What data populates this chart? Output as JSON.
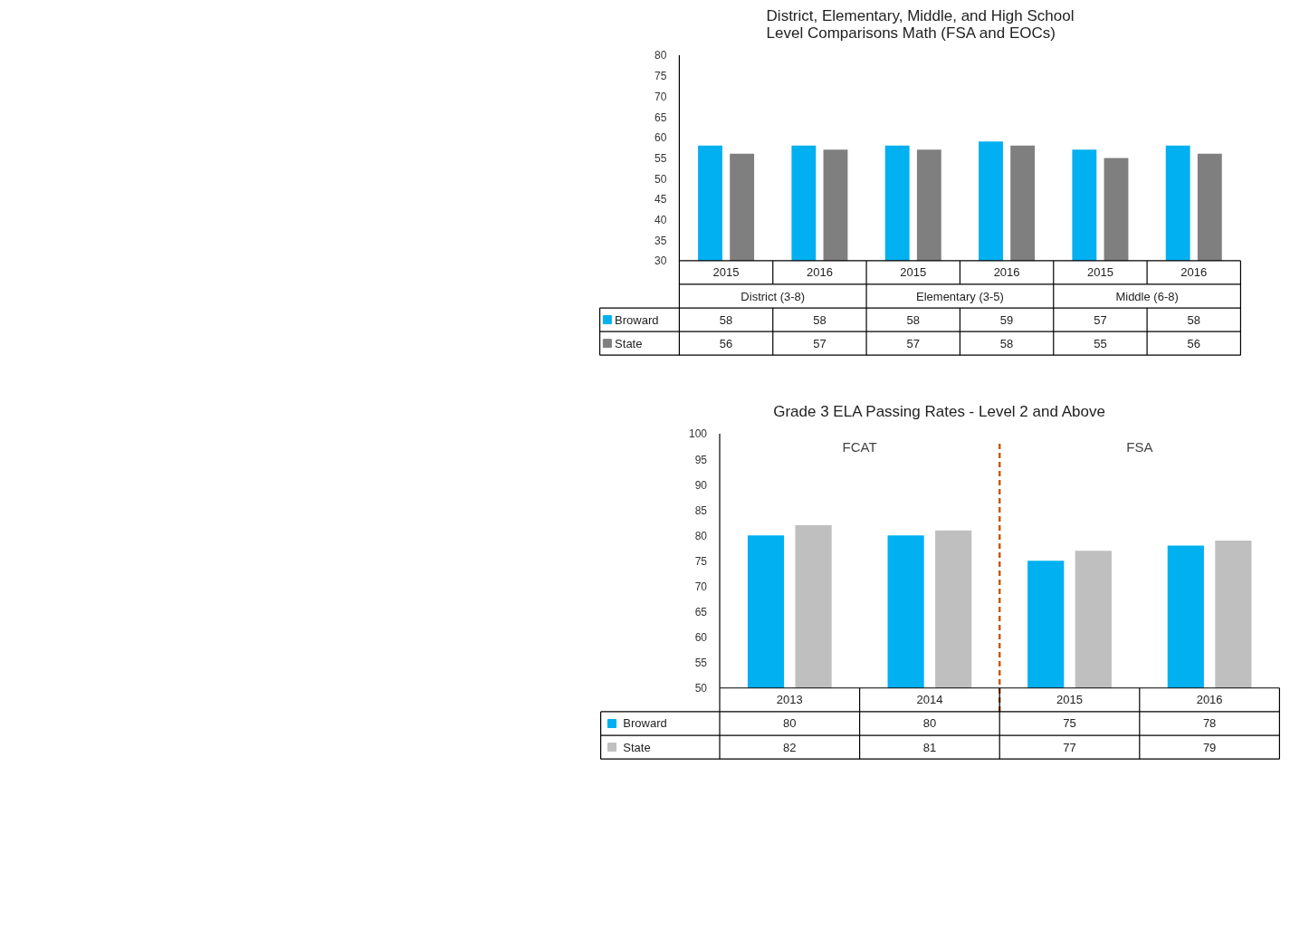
{
  "chart_data": [
    {
      "type": "bar",
      "title": "District, Elementary, Middle, and High School\nLevel Comparisons Math (FSA and EOCs)",
      "categories": [
        "2015",
        "2016",
        "2015",
        "2016",
        "2015",
        "2016"
      ],
      "series": [
        {
          "name": "Broward",
          "color": "#00b0f0",
          "values": [
            58,
            58,
            58,
            59,
            57,
            58
          ]
        },
        {
          "name": "State",
          "color": "#7f7f7f",
          "values": [
            56,
            57,
            57,
            58,
            55,
            56
          ]
        }
      ],
      "annotations": [
        "District (3-8)",
        "Elementary (3-5)",
        "Middle (6-8)"
      ],
      "ylim": [
        30,
        80
      ],
      "yticks": [
        30,
        35,
        40,
        45,
        50,
        55,
        60,
        65,
        70,
        75,
        80
      ],
      "grid": false,
      "legend": "bottom left",
      "data_labels": true
    },
    {
      "type": "bar",
      "title": "Grade 3 ELA Passing Rates - Level 2 and Above",
      "categories": [
        "2013",
        "2014",
        "2015",
        "2016"
      ],
      "series": [
        {
          "name": "Broward",
          "color": "#00b0f0",
          "values": [
            80,
            80,
            75,
            78
          ]
        },
        {
          "name": "State",
          "color": "#bfbfbf",
          "values": [
            82,
            81,
            77,
            79
          ]
        }
      ],
      "annotations": [
        "FCAT",
        "FSA"
      ],
      "ref_lines": [
        {
          "axis": "x",
          "value": "2015",
          "color": "#c55a11",
          "line_style": "dashed"
        }
      ],
      "ylim": [
        50,
        100
      ],
      "yticks": [
        50,
        55,
        60,
        65,
        70,
        75,
        80,
        85,
        90,
        95,
        100
      ],
      "grid": false,
      "legend": "bottom left",
      "data_labels": true
    }
  ]
}
